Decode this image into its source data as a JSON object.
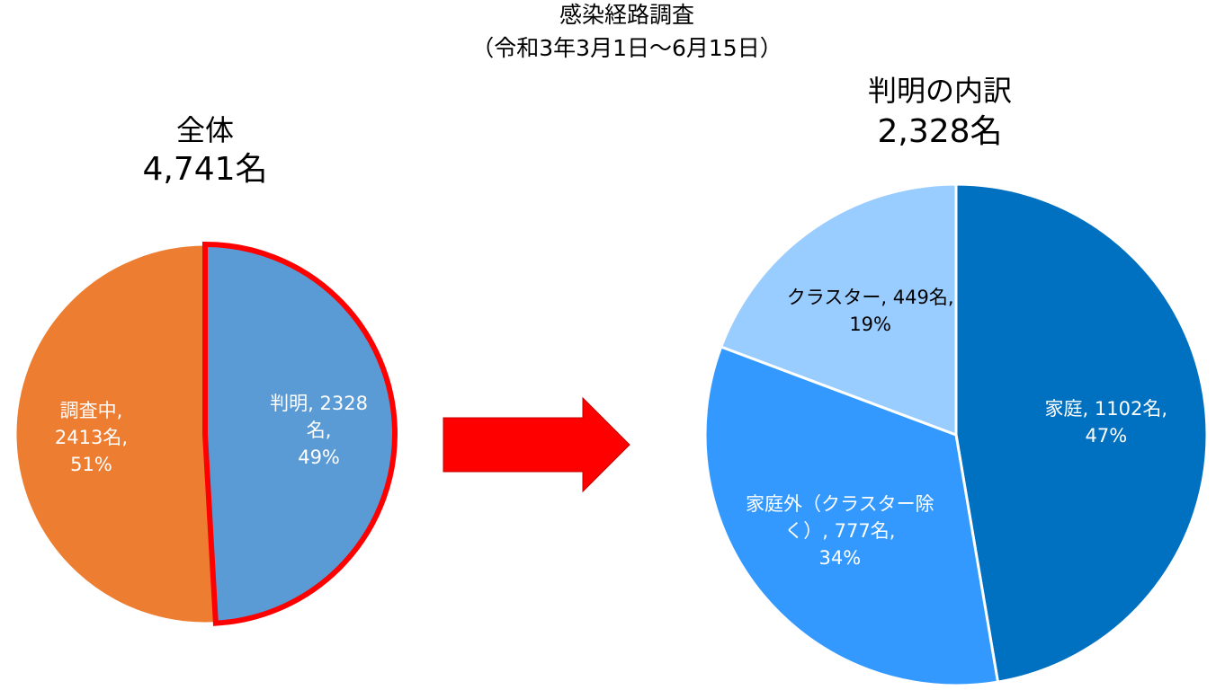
{
  "title": "感染経路調査",
  "subtitle": "（令和3年3月1日～6月15日）",
  "chart_data": [
    {
      "type": "pie",
      "title": "全体",
      "subtitle": "4,741名",
      "categories": [
        "判明",
        "調査中"
      ],
      "values": [
        2328,
        2413
      ],
      "value_labels": [
        "2328名",
        "2413名"
      ],
      "percents": [
        49,
        51
      ],
      "percent_labels": [
        "49%",
        "51%"
      ],
      "separator": ",",
      "colors": [
        "#5b9bd5",
        "#ed7d31"
      ],
      "label_colors": [
        "#ffffff",
        "#ffffff"
      ],
      "highlight": 0,
      "highlight_color": "#ff0000"
    },
    {
      "type": "pie",
      "title": "判明の内訳",
      "subtitle": "2,328名",
      "categories": [
        "家庭",
        "家庭外（クラスター除く）",
        "クラスター"
      ],
      "values": [
        1102,
        777,
        449
      ],
      "value_labels": [
        "1102名",
        "777名",
        "449名"
      ],
      "percents": [
        47,
        34,
        19
      ],
      "percent_labels": [
        "47%",
        "34%",
        "19%"
      ],
      "separator": ",",
      "colors": [
        "#0070c0",
        "#3399ff",
        "#99ccff"
      ],
      "label_colors": [
        "#ffffff",
        "#ffffff",
        "#000000"
      ]
    }
  ]
}
